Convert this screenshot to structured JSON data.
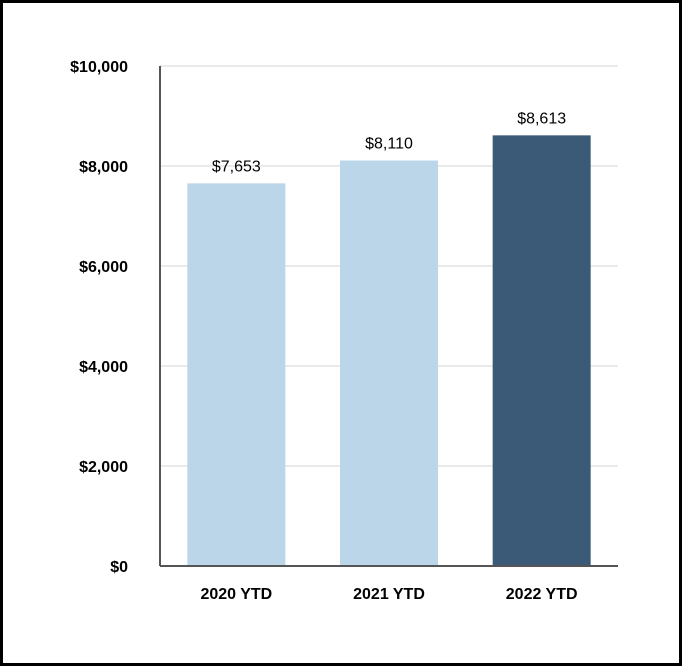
{
  "chart_data": {
    "type": "bar",
    "categories": [
      "2020 YTD",
      "2021 YTD",
      "2022 YTD"
    ],
    "values": [
      7653,
      8110,
      8613
    ],
    "data_labels": [
      "$7,653",
      "$8,110",
      "$8,613"
    ],
    "bar_colors": [
      "#bcd6e9",
      "#bcd6e9",
      "#3b5a78"
    ],
    "ylim": [
      0,
      10000
    ],
    "yticks": [
      0,
      2000,
      4000,
      6000,
      8000,
      10000
    ],
    "ytick_labels": [
      "$0",
      "$2,000",
      "$4,000",
      "$6,000",
      "$8,000",
      "$10,000"
    ],
    "grid": true,
    "gridline_color": "#e3e3e3",
    "axis_color": "#555555",
    "legend": "none"
  }
}
